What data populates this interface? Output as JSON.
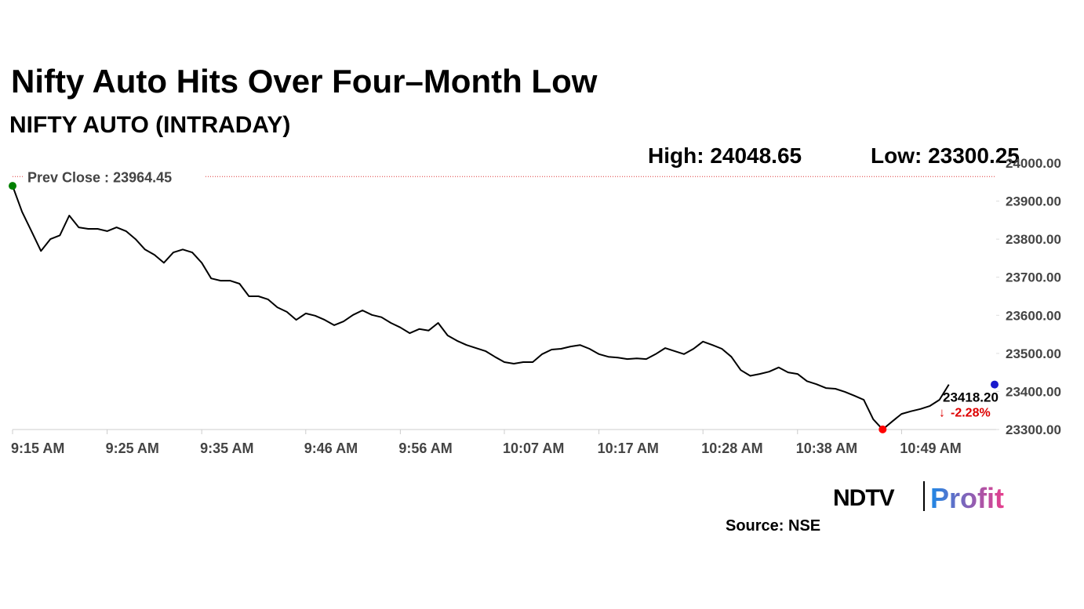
{
  "chart_data": {
    "type": "line",
    "title": "Nifty Auto Hits Over Four–Month Low",
    "subtitle": "NIFTY AUTO (INTRADAY)",
    "stats": [
      {
        "label": "High:",
        "value": 24048.65
      },
      {
        "label": "Low:",
        "value": 23300.25
      }
    ],
    "prev_close": {
      "label": "Prev Close :",
      "value": 23964.45
    },
    "last_value_label": "23418.20",
    "change_label": "-2.28%",
    "color": "#000000",
    "x": [
      "9:15",
      "9:16",
      "9:17",
      "9:18",
      "9:19",
      "9:20",
      "9:21",
      "9:22",
      "9:23",
      "9:24",
      "9:25",
      "9:26",
      "9:27",
      "9:28",
      "9:29",
      "9:30",
      "9:31",
      "9:32",
      "9:33",
      "9:34",
      "9:35",
      "9:36",
      "9:37",
      "9:38",
      "9:39",
      "9:40",
      "9:41",
      "9:42",
      "9:43",
      "9:44",
      "9:45",
      "9:46",
      "9:47",
      "9:48",
      "9:49",
      "9:50",
      "9:51",
      "9:52",
      "9:53",
      "9:54",
      "9:55",
      "9:56",
      "9:57",
      "9:58",
      "9:59",
      "10:00",
      "10:01",
      "10:02",
      "10:03",
      "10:04",
      "10:05",
      "10:06",
      "10:07",
      "10:08",
      "10:09",
      "10:10",
      "10:11",
      "10:12",
      "10:13",
      "10:14",
      "10:15",
      "10:16",
      "10:17",
      "10:18",
      "10:19",
      "10:20",
      "10:21",
      "10:22",
      "10:23",
      "10:24",
      "10:25",
      "10:26",
      "10:27",
      "10:28",
      "10:29",
      "10:30",
      "10:31",
      "10:32",
      "10:33",
      "10:34",
      "10:35",
      "10:36",
      "10:37",
      "10:38",
      "10:39",
      "10:40",
      "10:41",
      "10:42",
      "10:43",
      "10:44",
      "10:45",
      "10:46",
      "10:47",
      "10:48",
      "10:49",
      "10:50",
      "10:51",
      "10:52",
      "10:53",
      "10:54"
    ],
    "values": [
      23940,
      23872,
      23821,
      23769,
      23800,
      23810,
      23862,
      23831,
      23827,
      23827,
      23821,
      23831,
      23821,
      23800,
      23773,
      23759,
      23738,
      23765,
      23773,
      23765,
      23738,
      23697,
      23691,
      23691,
      23683,
      23650,
      23650,
      23642,
      23621,
      23609,
      23588,
      23605,
      23599,
      23588,
      23574,
      23584,
      23601,
      23613,
      23601,
      23595,
      23580,
      23568,
      23553,
      23564,
      23560,
      23580,
      23547,
      23533,
      23522,
      23514,
      23506,
      23491,
      23477,
      23473,
      23477,
      23477,
      23498,
      23510,
      23512,
      23518,
      23522,
      23512,
      23498,
      23491,
      23489,
      23485,
      23487,
      23485,
      23498,
      23514,
      23506,
      23498,
      23512,
      23531,
      23522,
      23512,
      23491,
      23456,
      23441,
      23446,
      23452,
      23463,
      23450,
      23446,
      23427,
      23419,
      23409,
      23407,
      23399,
      23389,
      23378,
      23327,
      23300.25,
      23321,
      23341,
      23348,
      23354,
      23362,
      23378,
      23418.2
    ],
    "xlim": [
      "9:15",
      "10:59"
    ],
    "xticks": [
      {
        "value": "9:15",
        "label": "9:15 AM"
      },
      {
        "value": "9:25",
        "label": "9:25 AM"
      },
      {
        "value": "9:35",
        "label": "9:35 AM"
      },
      {
        "value": "9:46",
        "label": "9:46 AM"
      },
      {
        "value": "9:56",
        "label": "9:56 AM"
      },
      {
        "value": "10:07",
        "label": "10:07 AM"
      },
      {
        "value": "10:17",
        "label": "10:17 AM"
      },
      {
        "value": "10:28",
        "label": "10:28 AM"
      },
      {
        "value": "10:38",
        "label": "10:38 AM"
      },
      {
        "value": "10:49",
        "label": "10:49 AM"
      }
    ],
    "ylim": [
      23300,
      24000
    ],
    "yticks": [
      {
        "value": 23300,
        "label": "23300.00"
      },
      {
        "value": 23400,
        "label": "23400.00"
      },
      {
        "value": 23500,
        "label": "23500.00"
      },
      {
        "value": 23600,
        "label": "23600.00"
      },
      {
        "value": 23700,
        "label": "23700.00"
      },
      {
        "value": 23800,
        "label": "23800.00"
      },
      {
        "value": 23900,
        "label": "23900.00"
      },
      {
        "value": 24000,
        "label": "24000.00"
      }
    ],
    "source": "Source: NSE",
    "logo": {
      "left": "NDTV",
      "right": "Profit"
    }
  }
}
